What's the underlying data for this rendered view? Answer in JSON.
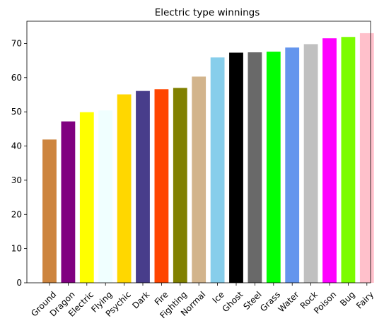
{
  "chart_data": {
    "type": "bar",
    "title": "Electric type winnings",
    "xlabel": "",
    "ylabel": "",
    "ylim": [
      0,
      76.5
    ],
    "yticks": [
      0,
      10,
      20,
      30,
      40,
      50,
      60,
      70
    ],
    "grid": false,
    "categories": [
      "Ground",
      "Dragon",
      "Electric",
      "Flying",
      "Psychic",
      "Dark",
      "Fire",
      "Fighting",
      "Normal",
      "Ice",
      "Ghost",
      "Steel",
      "Grass",
      "Water",
      "Rock",
      "Poison",
      "Bug",
      "Fairy"
    ],
    "values": [
      41.9,
      47.2,
      49.9,
      50.4,
      55.1,
      56.1,
      56.6,
      57.0,
      60.3,
      65.9,
      67.3,
      67.4,
      67.6,
      68.8,
      69.8,
      71.5,
      71.9,
      73.0
    ],
    "colors": [
      "#cd853f",
      "#800080",
      "#ffff00",
      "#f0ffff",
      "#ffd700",
      "#483d8b",
      "#ff4500",
      "#808000",
      "#d2b48c",
      "#87ceeb",
      "#000000",
      "#696969",
      "#00ff00",
      "#6495ed",
      "#c0c0c0",
      "#ff00ff",
      "#7cfc00",
      "#ffc0cb"
    ]
  }
}
